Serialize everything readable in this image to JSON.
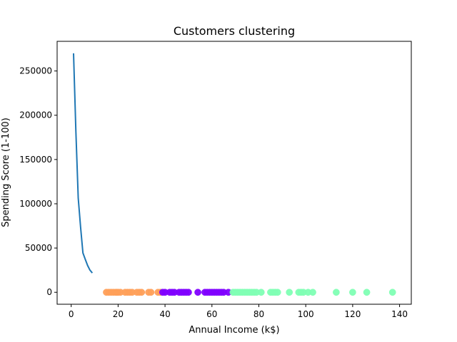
{
  "chart_data": {
    "type": "scatter",
    "title": "Customers clustering",
    "xlabel": "Annual Income (k$)",
    "ylabel": "Spending Score (1-100)",
    "xlim": [
      -6,
      145
    ],
    "ylim": [
      -13500,
      283500
    ],
    "x_ticks": [
      0,
      20,
      40,
      60,
      80,
      100,
      120,
      140
    ],
    "y_ticks": [
      0,
      50000,
      100000,
      150000,
      200000,
      250000
    ],
    "x_tick_labels": [
      "0",
      "20",
      "40",
      "60",
      "80",
      "100",
      "120",
      "140"
    ],
    "y_tick_labels": [
      "0",
      "50000",
      "100000",
      "150000",
      "200000",
      "250000"
    ],
    "grid": false,
    "legend": "none",
    "line_series": {
      "color": "#1f77b4",
      "x": [
        1,
        2,
        3,
        4,
        5,
        6,
        7,
        8,
        9
      ],
      "y": [
        269981,
        181363,
        106348,
        73679,
        44448,
        37233,
        30259,
        25011,
        21850
      ]
    },
    "scatter_series": [
      {
        "color": "#ffa05a",
        "x": [
          15,
          16,
          17,
          18,
          19,
          19.5,
          20,
          21,
          23,
          24,
          25,
          26,
          28,
          29,
          30,
          33,
          34,
          37,
          38
        ],
        "y": [
          0,
          0,
          0,
          0,
          0,
          0,
          0,
          0,
          0,
          0,
          0,
          0,
          0,
          0,
          0,
          0,
          0,
          0,
          0
        ]
      },
      {
        "color": "#8000ff",
        "x": [
          39,
          40,
          42,
          43,
          44,
          46,
          47,
          48,
          49,
          50,
          54,
          57,
          58,
          59,
          60,
          61,
          62,
          63,
          64,
          65,
          67
        ],
        "y": [
          0,
          0,
          0,
          0,
          0,
          0,
          0,
          0,
          0,
          0,
          0,
          0,
          0,
          0,
          0,
          0,
          0,
          0,
          0,
          0,
          0
        ]
      },
      {
        "color": "#80ffb4",
        "x": [
          69,
          70,
          71,
          72,
          73,
          74,
          75,
          76,
          77,
          78,
          79,
          81,
          85,
          86,
          87,
          88,
          93,
          97,
          98,
          99,
          101,
          103,
          113,
          120,
          126,
          137
        ],
        "y": [
          0,
          0,
          0,
          0,
          0,
          0,
          0,
          0,
          0,
          0,
          0,
          0,
          0,
          0,
          0,
          0,
          0,
          0,
          0,
          0,
          0,
          0,
          0,
          0,
          0,
          0
        ]
      }
    ]
  }
}
